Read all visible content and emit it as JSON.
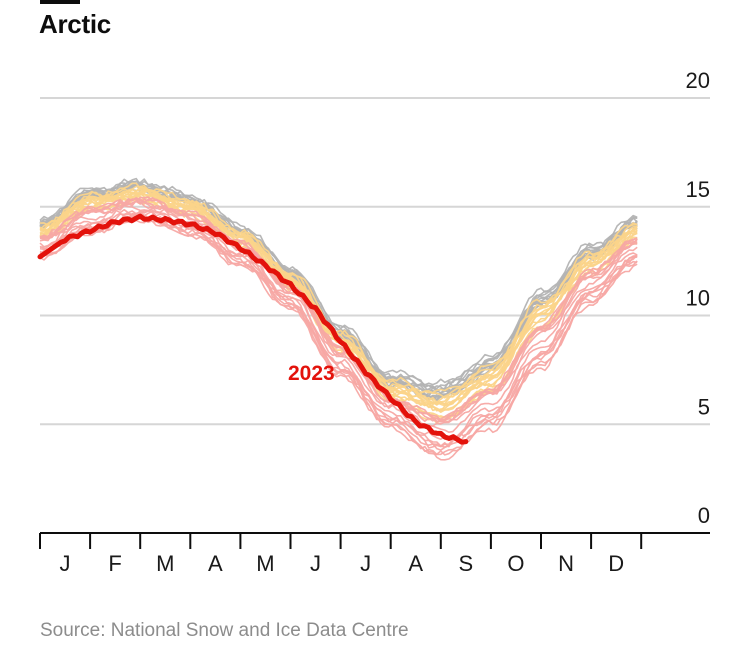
{
  "chart_data": {
    "type": "line",
    "title": "Arctic",
    "ylabel": "",
    "xlabel": "",
    "ylim": [
      0,
      20
    ],
    "yticks": [
      0,
      5,
      10,
      15,
      20
    ],
    "x_categories": [
      "J",
      "F",
      "M",
      "A",
      "M",
      "J",
      "J",
      "A",
      "S",
      "O",
      "N",
      "D"
    ],
    "annotation": "2023",
    "source": "Source: National Snow and Ice Data Centre",
    "colors": {
      "highlight": "#e3120b",
      "older_years": "#b3b3b3",
      "mid_years": "#fbd48a",
      "recent_years": "#f7a8a4",
      "grid": "#d6d6d6",
      "axis": "#0d0d0d"
    },
    "highlight_series": {
      "name": "2023",
      "points_month_value": [
        [
          0.0,
          12.7
        ],
        [
          0.5,
          13.5
        ],
        [
          1.0,
          13.9
        ],
        [
          1.5,
          14.3
        ],
        [
          2.0,
          14.5
        ],
        [
          2.5,
          14.4
        ],
        [
          3.0,
          14.2
        ],
        [
          3.5,
          13.8
        ],
        [
          4.0,
          13.1
        ],
        [
          4.5,
          12.3
        ],
        [
          5.0,
          11.4
        ],
        [
          5.5,
          10.3
        ],
        [
          6.0,
          8.8
        ],
        [
          6.5,
          7.4
        ],
        [
          7.0,
          6.2
        ],
        [
          7.5,
          5.1
        ],
        [
          8.0,
          4.5
        ],
        [
          8.5,
          4.2
        ]
      ]
    },
    "background_series_summary": {
      "description_range_by_month": {
        "months": [
          0,
          1,
          2,
          3,
          4,
          5,
          6,
          7,
          8,
          9,
          10,
          11,
          11.95
        ],
        "low": [
          12.7,
          13.8,
          14.4,
          13.7,
          12.3,
          10.3,
          7.2,
          4.8,
          3.4,
          4.8,
          7.6,
          10.6,
          12.4
        ],
        "high": [
          14.4,
          15.9,
          16.2,
          15.6,
          14.2,
          12.3,
          9.6,
          7.4,
          7.0,
          8.2,
          11.2,
          13.3,
          14.6
        ]
      }
    }
  }
}
